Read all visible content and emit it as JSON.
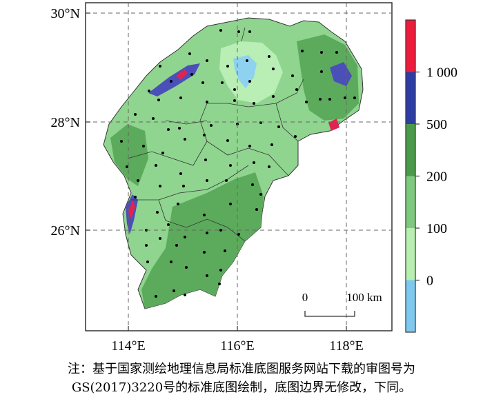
{
  "map": {
    "lat_ticks": [
      "30°N",
      "28°N",
      "26°N"
    ],
    "lon_ticks": [
      "114°E",
      "116°E",
      "118°E"
    ],
    "scale_bar": {
      "start": "0",
      "end": "100 km"
    },
    "colorbar": {
      "labels": [
        "1 000",
        "500",
        "200",
        "100",
        "0"
      ],
      "colors": [
        "#ed1c3c",
        "#2e3da3",
        "#4a9a4a",
        "#7fc97f",
        "#b8eeb0",
        "#7fc8ee"
      ]
    }
  },
  "note": {
    "line1": "注：基于国家测绘地理信息局标准底图服务网站下载的审图号为",
    "line2": "GS(2017)3220号的标准底图绘制，底图边界无修改，下同。"
  }
}
